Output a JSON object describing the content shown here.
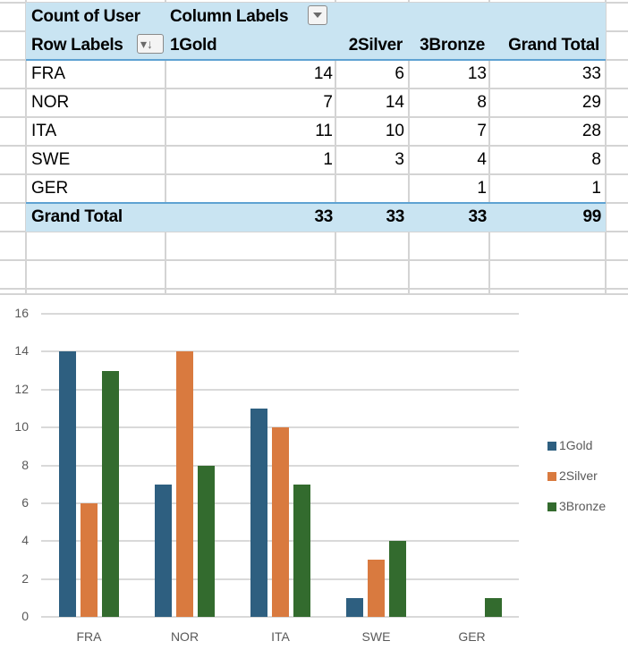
{
  "pivot": {
    "value_field": "Count of User",
    "column_labels": "Column Labels",
    "row_labels": "Row Labels",
    "columns": [
      "1Gold",
      "2Silver",
      "3Bronze",
      "Grand Total"
    ],
    "rows": [
      {
        "label": "FRA",
        "values": [
          "14",
          "6",
          "13",
          "33"
        ]
      },
      {
        "label": "NOR",
        "values": [
          "7",
          "14",
          "8",
          "29"
        ]
      },
      {
        "label": "ITA",
        "values": [
          "11",
          "10",
          "7",
          "28"
        ]
      },
      {
        "label": "SWE",
        "values": [
          "1",
          "3",
          "4",
          "8"
        ]
      },
      {
        "label": "GER",
        "values": [
          "",
          "",
          "1",
          "1"
        ]
      }
    ],
    "grand_total": {
      "label": "Grand Total",
      "values": [
        "33",
        "33",
        "33",
        "99"
      ]
    }
  },
  "chart_data": {
    "type": "bar",
    "title": "",
    "xlabel": "",
    "ylabel": "",
    "categories": [
      "FRA",
      "NOR",
      "ITA",
      "SWE",
      "GER"
    ],
    "series": [
      {
        "name": "1Gold",
        "color": "#2e5f80",
        "values": [
          14,
          7,
          11,
          1,
          0
        ]
      },
      {
        "name": "2Silver",
        "color": "#d97a3f",
        "values": [
          6,
          14,
          10,
          3,
          0
        ]
      },
      {
        "name": "3Bronze",
        "color": "#336b2e",
        "values": [
          13,
          8,
          7,
          4,
          1
        ]
      }
    ],
    "yticks": [
      "0",
      "2",
      "4",
      "6",
      "8",
      "10",
      "12",
      "14",
      "16"
    ],
    "ylim": [
      0,
      16
    ],
    "grid": true,
    "legend_position": "right"
  }
}
